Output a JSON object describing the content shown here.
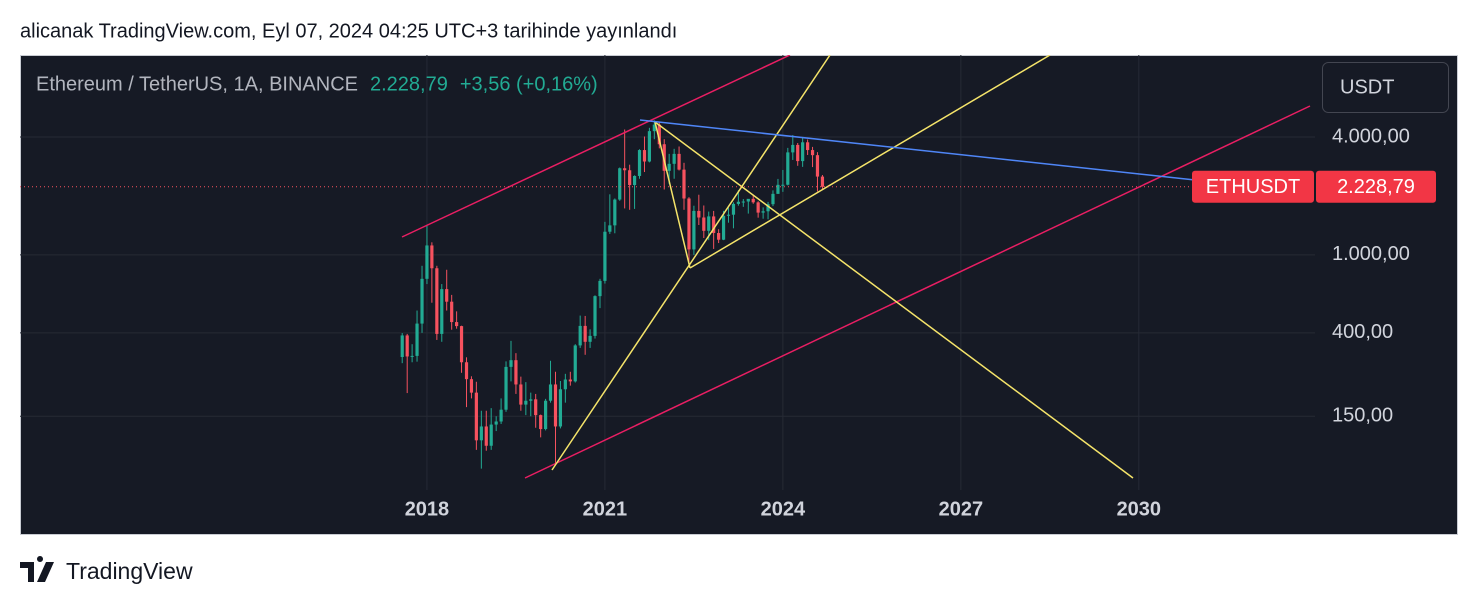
{
  "header": {
    "text": "alicanak TradingView.com, Eyl 07, 2024 04:25 UTC+3 tarihinde yayınlandı"
  },
  "footer": {
    "brand": "TradingView"
  },
  "chart_data": {
    "type": "candlestick",
    "symbol": "Ethereum / TetherUS, 1A, BINANCE",
    "change": "+3,56 (+0,16%)",
    "currency": "USDT",
    "ticker": "ETHUSDT",
    "price": {
      "value": 2228.79,
      "label": "2.228,79"
    },
    "up_color": "#22ab94",
    "down_color": "#f7525f",
    "log_scale": true,
    "grid": true,
    "xlim": [
      2011.14,
      2032.97
    ],
    "xticks": [
      2018,
      2021,
      2024,
      2027,
      2030
    ],
    "ylim": [
      63,
      10500
    ],
    "yticks": [
      {
        "value": 4000,
        "label": "4.000,00"
      },
      {
        "value": 1000,
        "label": "1.000,00"
      },
      {
        "value": 400,
        "label": "400,00"
      },
      {
        "value": 150,
        "label": "150,00"
      }
    ],
    "x": [
      2017.583,
      2017.667,
      2017.75,
      2017.833,
      2017.917,
      2018,
      2018.083,
      2018.167,
      2018.25,
      2018.333,
      2018.417,
      2018.5,
      2018.583,
      2018.667,
      2018.75,
      2018.833,
      2018.917,
      2019,
      2019.083,
      2019.167,
      2019.25,
      2019.333,
      2019.417,
      2019.5,
      2019.583,
      2019.667,
      2019.75,
      2019.833,
      2019.917,
      2020,
      2020.083,
      2020.167,
      2020.25,
      2020.333,
      2020.417,
      2020.5,
      2020.583,
      2020.667,
      2020.75,
      2020.833,
      2020.917,
      2021,
      2021.083,
      2021.167,
      2021.25,
      2021.333,
      2021.417,
      2021.5,
      2021.583,
      2021.667,
      2021.75,
      2021.833,
      2021.917,
      2022,
      2022.083,
      2022.167,
      2022.25,
      2022.333,
      2022.417,
      2022.5,
      2022.583,
      2022.667,
      2022.75,
      2022.833,
      2022.917,
      2023,
      2023.083,
      2023.167,
      2023.25,
      2023.333,
      2023.417,
      2023.5,
      2023.583,
      2023.667,
      2023.75,
      2023.833,
      2023.917,
      2024,
      2024.083,
      2024.167,
      2024.25,
      2024.333,
      2024.417,
      2024.5,
      2024.583,
      2024.667
    ],
    "open": [
      301,
      388,
      303,
      305,
      446,
      755,
      1118,
      855,
      395,
      669,
      577,
      454,
      433,
      283,
      232,
      198,
      113,
      133,
      106,
      136,
      141,
      162,
      268,
      290,
      218,
      172,
      180,
      183,
      152,
      129,
      180,
      218,
      133,
      206,
      231,
      226,
      345,
      434,
      360,
      386,
      616,
      737,
      1314,
      1416,
      1918,
      2772,
      2707,
      2275,
      2531,
      3433,
      3000,
      4288,
      4631,
      3676,
      2689,
      2920,
      3282,
      2727,
      1942,
      1067,
      1678,
      1553,
      1328,
      1573,
      1294,
      1196,
      1585,
      1605,
      1822,
      1869,
      1874,
      1934,
      1856,
      1645,
      1671,
      1816,
      2051,
      2281,
      2283,
      3340,
      3647,
      3015,
      3761,
      3433,
      3233,
      2513
    ],
    "high": [
      399,
      395,
      350,
      520,
      880,
      1420,
      1160,
      880,
      710,
      840,
      625,
      515,
      435,
      300,
      240,
      225,
      160,
      160,
      165,
      150,
      185,
      286,
      364,
      315,
      239,
      224,
      198,
      195,
      153,
      184,
      288,
      253,
      227,
      247,
      253,
      350,
      490,
      488,
      417,
      622,
      755,
      1476,
      2040,
      1943,
      2797,
      4372,
      2890,
      2551,
      3466,
      4027,
      4460,
      4868,
      4778,
      3900,
      3282,
      3483,
      3580,
      2955,
      1973,
      1784,
      2030,
      1789,
      1665,
      1678,
      1353,
      1680,
      1743,
      1857,
      2142,
      1929,
      1930,
      2029,
      1880,
      1750,
      1866,
      2137,
      2445,
      2717,
      3522,
      4093,
      3730,
      3977,
      3887,
      3563,
      3350,
      2560
    ],
    "low": [
      280,
      197,
      283,
      285,
      400,
      710,
      570,
      368,
      360,
      520,
      415,
      420,
      250,
      167,
      185,
      101,
      81,
      100,
      101,
      126,
      137,
      158,
      226,
      195,
      160,
      152,
      150,
      131,
      117,
      127,
      176,
      86,
      130,
      176,
      215,
      223,
      335,
      309,
      335,
      374,
      535,
      714,
      1280,
      1290,
      1890,
      1728,
      1700,
      1718,
      2450,
      2651,
      2970,
      3900,
      3503,
      2159,
      2300,
      2450,
      2700,
      1700,
      880,
      1000,
      1422,
      1220,
      1190,
      1073,
      1150,
      1190,
      1461,
      1368,
      1785,
      1760,
      1626,
      1825,
      1550,
      1531,
      1521,
      1776,
      2050,
      2100,
      2264,
      3056,
      2852,
      2817,
      3240,
      2810,
      2111,
      2150
    ],
    "close": [
      388,
      303,
      305,
      446,
      755,
      1118,
      855,
      395,
      669,
      577,
      454,
      433,
      283,
      232,
      198,
      113,
      133,
      106,
      136,
      141,
      162,
      268,
      290,
      218,
      172,
      180,
      183,
      152,
      129,
      180,
      218,
      133,
      206,
      231,
      226,
      345,
      434,
      360,
      386,
      616,
      737,
      1314,
      1416,
      1918,
      2772,
      2707,
      2275,
      2531,
      3433,
      3000,
      4288,
      4631,
      3676,
      2689,
      2920,
      3282,
      2727,
      1942,
      1067,
      1678,
      1553,
      1328,
      1573,
      1294,
      1196,
      1585,
      1605,
      1822,
      1869,
      1874,
      1934,
      1856,
      1645,
      1671,
      1816,
      2051,
      2281,
      2283,
      3340,
      3647,
      3015,
      3761,
      3433,
      3233,
      2513,
      2228.79
    ]
  }
}
